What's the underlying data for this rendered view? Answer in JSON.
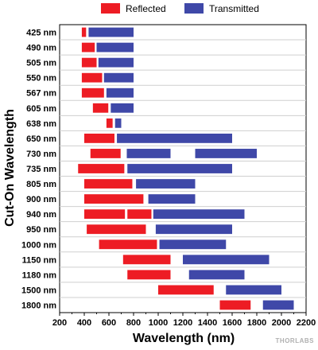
{
  "chart_data": {
    "type": "bar",
    "orientation": "horizontal-range",
    "xlabel": "Wavelength (nm)",
    "ylabel": "Cut-On Wavelength",
    "xlim": [
      200,
      2200
    ],
    "xticks": [
      200,
      400,
      600,
      800,
      1000,
      1200,
      1400,
      1600,
      1800,
      2000,
      2200
    ],
    "grid": false,
    "legend_position": "top",
    "categories": [
      "425 nm",
      "490 nm",
      "505 nm",
      "550 nm",
      "567 nm",
      "605 nm",
      "638 nm",
      "650 nm",
      "730 nm",
      "735 nm",
      "805 nm",
      "900 nm",
      "940 nm",
      "950 nm",
      "1000 nm",
      "1150 nm",
      "1180 nm",
      "1500 nm",
      "1800 nm"
    ],
    "series": [
      {
        "name": "Reflected",
        "color": "#ed1c24",
        "ranges": [
          [
            [
              380,
              415
            ]
          ],
          [
            [
              380,
              485
            ]
          ],
          [
            [
              380,
              500
            ]
          ],
          [
            [
              380,
              545
            ]
          ],
          [
            [
              380,
              560
            ]
          ],
          [
            [
              470,
              595
            ]
          ],
          [
            [
              580,
              630
            ]
          ],
          [
            [
              400,
              645
            ]
          ],
          [
            [
              450,
              695
            ]
          ],
          [
            [
              350,
              725
            ]
          ],
          [
            [
              400,
              790
            ]
          ],
          [
            [
              400,
              880
            ]
          ],
          [
            [
              400,
              730
            ],
            [
              750,
              945
            ]
          ],
          [
            [
              420,
              900
            ]
          ],
          [
            [
              520,
              990
            ]
          ],
          [
            [
              715,
              1100
            ]
          ],
          [
            [
              750,
              1100
            ]
          ],
          [
            [
              1000,
              1450
            ]
          ],
          [
            [
              1500,
              1750
            ]
          ]
        ]
      },
      {
        "name": "Transmitted",
        "color": "#3f48a8",
        "ranges": [
          [
            [
              435,
              800
            ]
          ],
          [
            [
              500,
              800
            ]
          ],
          [
            [
              515,
              800
            ]
          ],
          [
            [
              560,
              800
            ]
          ],
          [
            [
              580,
              800
            ]
          ],
          [
            [
              615,
              800
            ]
          ],
          [
            [
              650,
              700
            ]
          ],
          [
            [
              665,
              1600
            ]
          ],
          [
            [
              745,
              1100
            ],
            [
              1300,
              1800
            ]
          ],
          [
            [
              750,
              1600
            ]
          ],
          [
            [
              820,
              1300
            ]
          ],
          [
            [
              920,
              1300
            ]
          ],
          [
            [
              960,
              1700
            ]
          ],
          [
            [
              980,
              1600
            ]
          ],
          [
            [
              1010,
              1550
            ]
          ],
          [
            [
              1200,
              1900
            ]
          ],
          [
            [
              1250,
              1700
            ]
          ],
          [
            [
              1550,
              2000
            ]
          ],
          [
            [
              1850,
              2100
            ]
          ]
        ]
      }
    ]
  },
  "brand_text": "THORLABS"
}
